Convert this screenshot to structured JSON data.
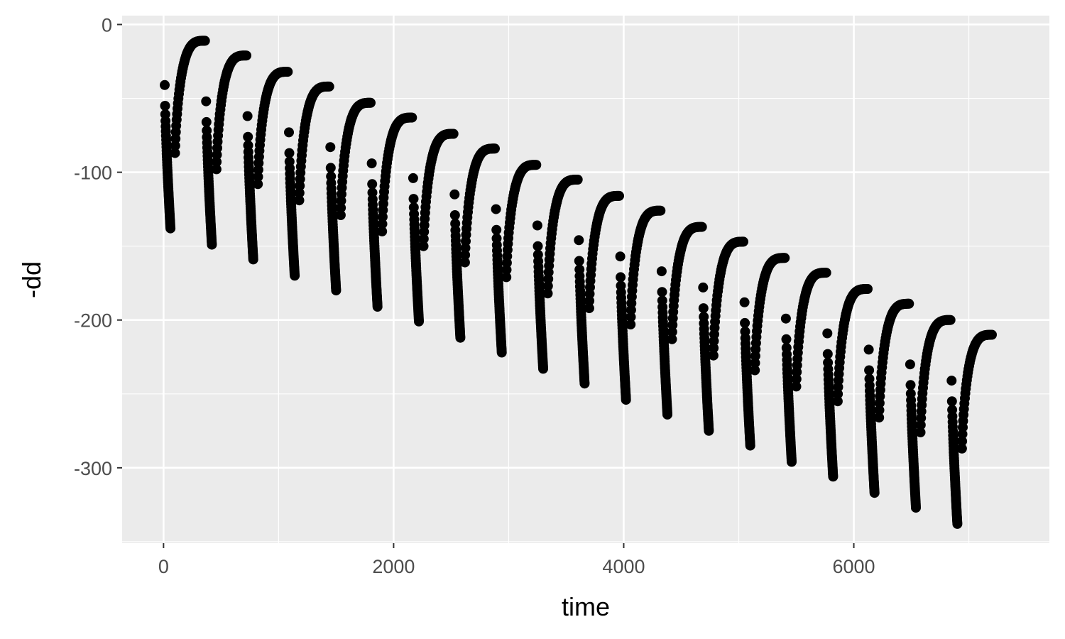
{
  "chart_data": {
    "type": "scatter",
    "title": "",
    "xlabel": "time",
    "ylabel": "-dd",
    "xlim": [
      -360,
      7700
    ],
    "ylim": [
      -351,
      6
    ],
    "x_ticks": [
      0,
      2000,
      4000,
      6000
    ],
    "x_tick_labels": [
      "0",
      "2000",
      "4000",
      "6000"
    ],
    "y_ticks": [
      0,
      -100,
      -200,
      -300
    ],
    "y_tick_labels": [
      "0",
      "-100",
      "-200",
      "-300"
    ],
    "grid": true,
    "legend": "none",
    "point_color": "#000000",
    "panel_background": "#ebebeb",
    "cycle_period": 360,
    "cycles": [
      {
        "start_time": 0,
        "start_value": -41,
        "low_value": -138,
        "peak_value": -11
      },
      {
        "start_time": 360,
        "start_value": -52,
        "low_value": -149,
        "peak_value": -21
      },
      {
        "start_time": 720,
        "start_value": -62,
        "low_value": -159,
        "peak_value": -32
      },
      {
        "start_time": 1080,
        "start_value": -73,
        "low_value": -170,
        "peak_value": -42
      },
      {
        "start_time": 1440,
        "start_value": -83,
        "low_value": -180,
        "peak_value": -53
      },
      {
        "start_time": 1800,
        "start_value": -94,
        "low_value": -191,
        "peak_value": -63
      },
      {
        "start_time": 2160,
        "start_value": -104,
        "low_value": -201,
        "peak_value": -74
      },
      {
        "start_time": 2520,
        "start_value": -115,
        "low_value": -212,
        "peak_value": -84
      },
      {
        "start_time": 2880,
        "start_value": -125,
        "low_value": -222,
        "peak_value": -95
      },
      {
        "start_time": 3240,
        "start_value": -136,
        "low_value": -233,
        "peak_value": -105
      },
      {
        "start_time": 3600,
        "start_value": -146,
        "low_value": -243,
        "peak_value": -116
      },
      {
        "start_time": 3960,
        "start_value": -157,
        "low_value": -254,
        "peak_value": -126
      },
      {
        "start_time": 4320,
        "start_value": -167,
        "low_value": -264,
        "peak_value": -137
      },
      {
        "start_time": 4680,
        "start_value": -178,
        "low_value": -275,
        "peak_value": -147
      },
      {
        "start_time": 5040,
        "start_value": -188,
        "low_value": -285,
        "peak_value": -158
      },
      {
        "start_time": 5400,
        "start_value": -199,
        "low_value": -296,
        "peak_value": -168
      },
      {
        "start_time": 5760,
        "start_value": -209,
        "low_value": -306,
        "peak_value": -179
      },
      {
        "start_time": 6120,
        "start_value": -220,
        "low_value": -317,
        "peak_value": -189
      },
      {
        "start_time": 6480,
        "start_value": -230,
        "low_value": -327,
        "peak_value": -200
      },
      {
        "start_time": 6840,
        "start_value": -241,
        "low_value": -338,
        "peak_value": -210
      }
    ]
  }
}
